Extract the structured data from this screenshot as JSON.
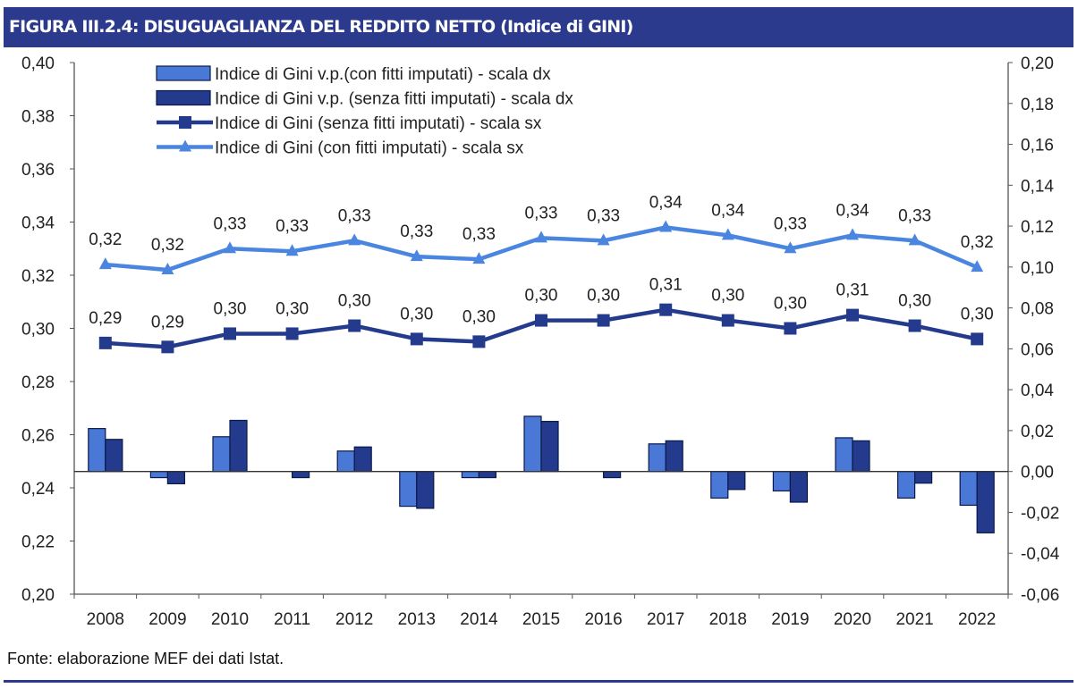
{
  "title": "FIGURA III.2.4: DISUGUAGLIANZA DEL REDDITO NETTO (Indice di GINI)",
  "source": "Fonte: elaborazione MEF dei dati Istat.",
  "chart_data": {
    "type": "bar+line",
    "title": "FIGURA III.2.4: DISUGUAGLIANZA DEL REDDITO NETTO (Indice di GINI)",
    "categories": [
      "2008",
      "2009",
      "2010",
      "2011",
      "2012",
      "2013",
      "2014",
      "2015",
      "2016",
      "2017",
      "2018",
      "2019",
      "2020",
      "2021",
      "2022"
    ],
    "left_axis": {
      "ylim": [
        0.2,
        0.4
      ],
      "ticks": [
        "0,20",
        "0,22",
        "0,24",
        "0,26",
        "0,28",
        "0,30",
        "0,32",
        "0,34",
        "0,36",
        "0,38",
        "0,40"
      ]
    },
    "right_axis": {
      "ylim": [
        -0.06,
        0.2
      ],
      "ticks": [
        "-0,06",
        "-0,04",
        "-0,02",
        "0,00",
        "0,02",
        "0,04",
        "0,06",
        "0,08",
        "0,10",
        "0,12",
        "0,14",
        "0,16",
        "0,18",
        "0,20"
      ]
    },
    "grid": false,
    "legend_position": "top-left",
    "series": [
      {
        "name": "Indice di Gini  v.p.(con fitti imputati) - scala dx",
        "type": "bar",
        "axis": "right",
        "color": "#4A78D6",
        "values": [
          0.021,
          -0.003,
          0.017,
          0.0,
          0.01,
          -0.017,
          -0.003,
          0.027,
          0.0,
          0.0135,
          -0.013,
          -0.0095,
          0.0165,
          -0.013,
          -0.0165
        ]
      },
      {
        "name": "Indice di Gini v.p. (senza fitti imputati) - scala dx",
        "type": "bar",
        "axis": "right",
        "color": "#243A8C",
        "values": [
          0.0157,
          -0.006,
          0.025,
          -0.003,
          0.012,
          -0.018,
          -0.003,
          0.0245,
          -0.003,
          0.015,
          -0.0088,
          -0.015,
          0.015,
          -0.0057,
          -0.03
        ]
      },
      {
        "name": "Indice di Gini (senza fitti imputati) - scala sx",
        "type": "line",
        "axis": "left",
        "marker": "square",
        "color": "#243A8C",
        "values": [
          0.2945,
          0.293,
          0.298,
          0.298,
          0.301,
          0.296,
          0.295,
          0.303,
          0.303,
          0.307,
          0.303,
          0.3,
          0.305,
          0.301,
          0.296
        ],
        "labels": [
          "0,29",
          "0,29",
          "0,30",
          "0,30",
          "0,30",
          "0,30",
          "0,30",
          "0,30",
          "0,30",
          "0,31",
          "0,30",
          "0,30",
          "0,31",
          "0,30",
          "0,30"
        ]
      },
      {
        "name": "Indice di Gini (con fitti imputati) - scala sx",
        "type": "line",
        "axis": "left",
        "marker": "triangle",
        "color": "#4A86E0",
        "values": [
          0.324,
          0.322,
          0.33,
          0.329,
          0.333,
          0.327,
          0.326,
          0.334,
          0.333,
          0.338,
          0.335,
          0.33,
          0.335,
          0.333,
          0.323
        ],
        "labels": [
          "0,32",
          "0,32",
          "0,33",
          "0,33",
          "0,33",
          "0,33",
          "0,33",
          "0,33",
          "0,33",
          "0,34",
          "0,34",
          "0,33",
          "0,34",
          "0,33",
          "0,32"
        ]
      }
    ]
  }
}
